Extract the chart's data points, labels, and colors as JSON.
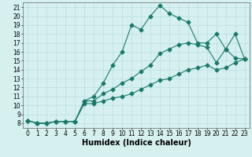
{
  "xlabel": "Humidex (Indice chaleur)",
  "ylabel": "",
  "background_color": "#d6f0f0",
  "grid_color": "#b8dede",
  "line_color": "#1a7a6a",
  "xlim": [
    -0.5,
    23.5
  ],
  "ylim": [
    7.5,
    21.5
  ],
  "xticks": [
    0,
    1,
    2,
    3,
    4,
    5,
    6,
    7,
    8,
    9,
    10,
    11,
    12,
    13,
    14,
    15,
    16,
    17,
    18,
    19,
    20,
    21,
    22,
    23
  ],
  "yticks": [
    8,
    9,
    10,
    11,
    12,
    13,
    14,
    15,
    16,
    17,
    18,
    19,
    20,
    21
  ],
  "line1_x": [
    0,
    1,
    2,
    3,
    4,
    5,
    6,
    7,
    8,
    9,
    10,
    11,
    12,
    13,
    14,
    15,
    16,
    17,
    18,
    19,
    20,
    21,
    22,
    23
  ],
  "line1_y": [
    8.3,
    8.0,
    8.0,
    8.2,
    8.2,
    8.2,
    10.5,
    11.0,
    12.5,
    14.5,
    16.0,
    19.0,
    18.5,
    20.0,
    21.2,
    20.3,
    19.8,
    19.3,
    17.0,
    17.0,
    18.0,
    16.3,
    18.0,
    15.2
  ],
  "line2_x": [
    0,
    1,
    2,
    3,
    4,
    5,
    6,
    7,
    8,
    9,
    10,
    11,
    12,
    13,
    14,
    15,
    16,
    17,
    18,
    19,
    20,
    21,
    22,
    23
  ],
  "line2_y": [
    8.3,
    8.0,
    8.0,
    8.2,
    8.2,
    8.2,
    10.5,
    10.5,
    11.3,
    11.8,
    12.5,
    13.0,
    13.8,
    14.5,
    15.8,
    16.3,
    16.8,
    17.0,
    16.8,
    16.5,
    14.8,
    16.3,
    15.3,
    15.2
  ],
  "line3_x": [
    0,
    1,
    2,
    3,
    4,
    5,
    6,
    7,
    8,
    9,
    10,
    11,
    12,
    13,
    14,
    15,
    16,
    17,
    18,
    19,
    20,
    21,
    22,
    23
  ],
  "line3_y": [
    8.3,
    8.0,
    8.0,
    8.2,
    8.2,
    8.2,
    10.2,
    10.2,
    10.5,
    10.8,
    11.0,
    11.3,
    11.8,
    12.3,
    12.8,
    13.0,
    13.5,
    14.0,
    14.2,
    14.5,
    14.0,
    14.2,
    14.8,
    15.2
  ],
  "marker": "D",
  "markersize": 2.5,
  "linewidth": 0.8,
  "xlabel_fontsize": 7,
  "tick_fontsize": 5.5
}
